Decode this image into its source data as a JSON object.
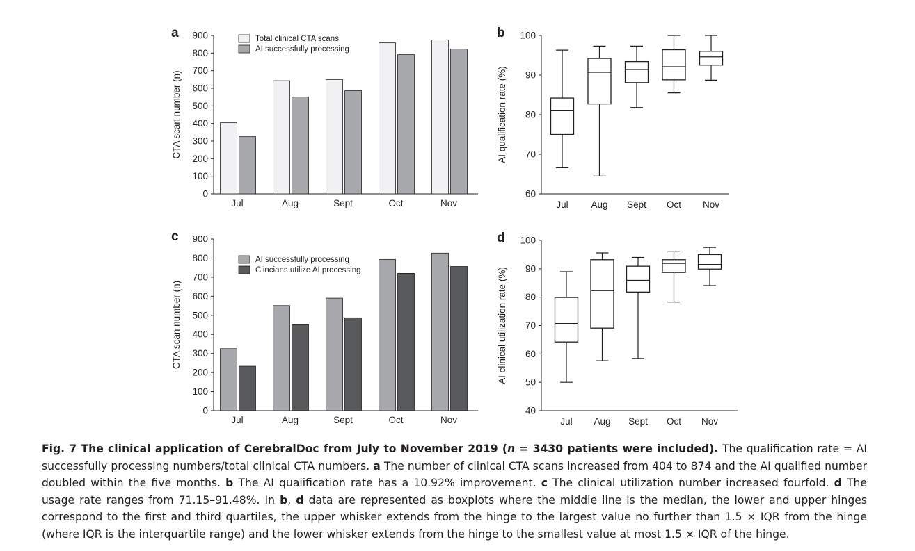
{
  "chart_data": [
    {
      "panel": "a",
      "type": "bar",
      "categories": [
        "Jul",
        "Aug",
        "Sept",
        "Oct",
        "Nov"
      ],
      "series": [
        {
          "name": "Total clinical CTA scans",
          "values": [
            404,
            643,
            650,
            858,
            874
          ],
          "color": "#f1f1f3"
        },
        {
          "name": "AI successfully processing",
          "values": [
            325,
            551,
            586,
            791,
            823
          ],
          "color": "#a7a8ab"
        }
      ],
      "ylabel": "CTA scan number (n)",
      "ylim": [
        0,
        900
      ],
      "yticks": [
        0,
        100,
        200,
        300,
        400,
        500,
        600,
        700,
        800,
        900
      ],
      "legend": "top-left"
    },
    {
      "panel": "b",
      "type": "boxplot",
      "categories": [
        "Jul",
        "Aug",
        "Sept",
        "Oct",
        "Nov"
      ],
      "boxes": [
        {
          "min": 66.6,
          "q1": 75.0,
          "median": 81.0,
          "q3": 84.2,
          "max": 96.3
        },
        {
          "min": 64.5,
          "q1": 82.7,
          "median": 90.7,
          "q3": 94.2,
          "max": 97.3
        },
        {
          "min": 81.8,
          "q1": 88.1,
          "median": 91.4,
          "q3": 93.4,
          "max": 97.3
        },
        {
          "min": 85.5,
          "q1": 88.8,
          "median": 92.1,
          "q3": 96.4,
          "max": 100
        },
        {
          "min": 88.7,
          "q1": 92.5,
          "median": 94.6,
          "q3": 96.0,
          "max": 100
        }
      ],
      "ylabel": "AI qualification rate (%)",
      "ylim": [
        60,
        100
      ],
      "yticks": [
        60,
        70,
        80,
        90,
        100
      ]
    },
    {
      "panel": "c",
      "type": "bar",
      "categories": [
        "Jul",
        "Aug",
        "Sept",
        "Oct",
        "Nov"
      ],
      "series": [
        {
          "name": "AI successfully processing",
          "values": [
            325,
            551,
            590,
            793,
            826
          ],
          "color": "#a7a8ab"
        },
        {
          "name": "Clincians utilize AI processing",
          "values": [
            233,
            451,
            487,
            720,
            756
          ],
          "color": "#58595b"
        }
      ],
      "ylabel": "CTA scan number (n)",
      "ylim": [
        0,
        900
      ],
      "yticks": [
        0,
        100,
        200,
        300,
        400,
        500,
        600,
        700,
        800,
        900
      ],
      "legend": "top-left"
    },
    {
      "panel": "d",
      "type": "boxplot",
      "categories": [
        "Jul",
        "Aug",
        "Sept",
        "Oct",
        "Nov"
      ],
      "boxes": [
        {
          "min": 50.0,
          "q1": 64.2,
          "median": 70.7,
          "q3": 79.9,
          "max": 89.0
        },
        {
          "min": 57.6,
          "q1": 69.1,
          "median": 82.3,
          "q3": 93.2,
          "max": 95.6
        },
        {
          "min": 58.4,
          "q1": 81.8,
          "median": 85.9,
          "q3": 90.9,
          "max": 94.0
        },
        {
          "min": 78.3,
          "q1": 88.7,
          "median": 91.9,
          "q3": 93.2,
          "max": 96.0
        },
        {
          "min": 84.1,
          "q1": 89.9,
          "median": 91.5,
          "q3": 95.0,
          "max": 97.5
        }
      ],
      "ylabel": "AI clinical utilization rate (%)",
      "ylim": [
        40,
        100
      ],
      "yticks": [
        40,
        50,
        60,
        70,
        80,
        90,
        100
      ]
    }
  ],
  "caption": {
    "label": "Fig. 7 The clinical application of CerebralDoc from July to November 2019 (",
    "label_n": "n",
    "label_rest": " = 3430 patients were included).",
    "s1": " The qualification rate = AI successfully processing numbers/total clinical CTA numbers. ",
    "a": "a",
    "s2": " The number of clinical CTA scans increased from 404 to 874 and the AI qualified number doubled within the five months. ",
    "b": "b",
    "s3": " The AI qualification rate has a 10.92% improvement. ",
    "c": "c",
    "s4": " The clinical utilization number increased fourfold. ",
    "d": "d",
    "s5": " The usage rate ranges from 71.15–91.48%. In ",
    "b2": "b",
    "comma": ", ",
    "d2": "d",
    "s6": " data are represented as boxplots where the middle line is the median, the lower and upper hinges correspond to the first and third quartiles, the upper whisker extends from the hinge to the largest value no further than 1.5 × IQR from the hinge (where IQR is the interquartile range) and the lower whisker extends from the hinge to the smallest value at most 1.5 × IQR of the hinge."
  }
}
